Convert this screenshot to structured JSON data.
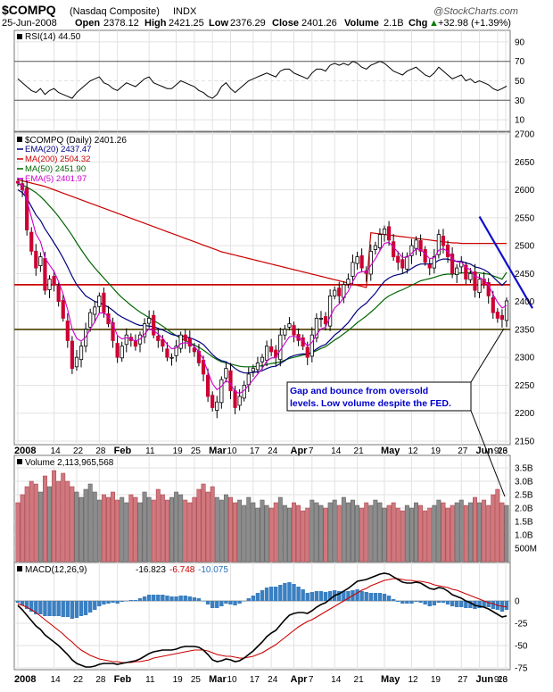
{
  "header": {
    "symbol": "$COMPQ",
    "exchange_name": "(Nasdaq Composite)",
    "index_tag": "INDX",
    "watermark": "@StockCharts.com",
    "date": "25-Jun-2008",
    "open_label": "Open",
    "open": "2378.12",
    "high_label": "High",
    "high": "2421.25",
    "low_label": "Low",
    "low": "2376.29",
    "close_label": "Close",
    "close": "2401.26",
    "volume_label": "Volume",
    "volume": "2.1B",
    "chg_label": "Chg",
    "chg": "+32.98 (+1.39%)",
    "chg_arrow": "▲"
  },
  "rsi_panel": {
    "label": "RSI(14) 44.50",
    "ticks": [
      "90",
      "70",
      "50",
      "30",
      "10"
    ]
  },
  "price_panel": {
    "label": "$COMPQ (Daily) 2401.26",
    "legend": [
      {
        "text": "EMA(20) 2437.47",
        "color": "#000080"
      },
      {
        "text": "MA(200) 2504.32",
        "color": "#cc0000"
      },
      {
        "text": "MA(50) 2451.90",
        "color": "#006600"
      },
      {
        "text": "EMA(5) 2401.97",
        "color": "#cc00cc"
      }
    ],
    "ticks": [
      "2700",
      "2650",
      "2600",
      "2550",
      "2500",
      "2450",
      "2400",
      "2350",
      "2300",
      "2250",
      "2200",
      "2150"
    ],
    "annotation": [
      "Gap and bounce from oversold",
      "levels. Low volume despite the FED."
    ]
  },
  "volume_panel": {
    "label": "Volume 2,113,965,568",
    "ticks": [
      "3.5B",
      "3.0B",
      "2.5B",
      "2.0B",
      "1.5B",
      "1.0B",
      "500M"
    ]
  },
  "macd_panel": {
    "label": "MACD(12,26,9)",
    "v1": "-16.823",
    "v2": "-6.748",
    "v3": "-10.075",
    "ticks": [
      "0",
      "-25",
      "-50",
      "-75"
    ]
  },
  "x_axis": {
    "labels": [
      "2008",
      "14",
      "22",
      "28",
      "Feb",
      "11",
      "19",
      "25",
      "Mar",
      "10",
      "17",
      "24",
      "Apr",
      "7",
      "14",
      "21",
      "May",
      "12",
      "19",
      "27",
      "Jun",
      "9",
      "16",
      "23"
    ]
  },
  "colors": {
    "up_candle": "#000000",
    "down_candle": "#cc0033",
    "volume_up": "#8c8c8c",
    "volume_down": "#d0787d",
    "macd_hist": "#3a7fc1",
    "trendline": "#1010cc",
    "support_line": "#cc0000",
    "support_green": "#006600"
  },
  "chart_data": {
    "type": "candlestick",
    "title": "$COMPQ (Nasdaq Composite)",
    "period": "Daily, Jan 2 2008 - Jun 25 2008",
    "last": {
      "date": "25-Jun-2008",
      "open": 2378.12,
      "high": 2421.25,
      "low": 2376.29,
      "close": 2401.26,
      "volume": "2.1B",
      "change": 32.98,
      "change_pct": 1.39
    },
    "price_ylim": [
      2150,
      2700
    ],
    "horizontal_lines": [
      2430,
      2350
    ],
    "trendline": {
      "from": {
        "date": "2008-06-05",
        "price": 2552
      },
      "to": {
        "date": "2008-06-25",
        "price": 2390
      }
    },
    "closes": [
      2612,
      2600,
      2528,
      2490,
      2460,
      2480,
      2420,
      2440,
      2430,
      2400,
      2370,
      2330,
      2280,
      2300,
      2320,
      2350,
      2380,
      2390,
      2410,
      2380,
      2360,
      2330,
      2300,
      2320,
      2340,
      2330,
      2320,
      2340,
      2360,
      2370,
      2340,
      2330,
      2320,
      2300,
      2300,
      2320,
      2340,
      2330,
      2320,
      2310,
      2290,
      2270,
      2230,
      2210,
      2220,
      2260,
      2280,
      2240,
      2210,
      2230,
      2250,
      2270,
      2280,
      2290,
      2300,
      2320,
      2310,
      2300,
      2340,
      2350,
      2360,
      2340,
      2330,
      2320,
      2300,
      2340,
      2370,
      2370,
      2360,
      2410,
      2420,
      2410,
      2430,
      2440,
      2470,
      2480,
      2460,
      2450,
      2490,
      2500,
      2520,
      2530,
      2510,
      2480,
      2470,
      2460,
      2480,
      2500,
      2510,
      2490,
      2470,
      2460,
      2480,
      2520,
      2500,
      2480,
      2450,
      2460,
      2470,
      2440,
      2450,
      2420,
      2440,
      2430,
      2410,
      2380,
      2370,
      2368,
      2401
    ],
    "ema20": [
      2600,
      2595,
      2585,
      2570,
      2555,
      2545,
      2530,
      2518,
      2505,
      2492,
      2478,
      2462,
      2445,
      2430,
      2420,
      2410,
      2405,
      2400,
      2398,
      2394,
      2390,
      2384,
      2377,
      2372,
      2368,
      2364,
      2360,
      2357,
      2357,
      2356,
      2355,
      2352,
      2349,
      2345,
      2341,
      2339,
      2338,
      2337,
      2335,
      2332,
      2328,
      2323,
      2314,
      2305,
      2298,
      2294,
      2292,
      2287,
      2280,
      2275,
      2272,
      2272,
      2273,
      2274,
      2276,
      2280,
      2283,
      2284,
      2289,
      2294,
      2300,
      2303,
      2305,
      2306,
      2306,
      2309,
      2315,
      2320,
      2323,
      2331,
      2340,
      2346,
      2354,
      2362,
      2373,
      2384,
      2391,
      2397,
      2406,
      2415,
      2426,
      2436,
      2442,
      2446,
      2448,
      2450,
      2454,
      2459,
      2464,
      2467,
      2467,
      2467,
      2468,
      2474,
      2476,
      2476,
      2473,
      2472,
      2472,
      2469,
      2467,
      2462,
      2460,
      2457,
      2452,
      2444,
      2436,
      2429,
      2437
    ],
    "ma50": [
      2610,
      2608,
      2605,
      2600,
      2595,
      2588,
      2580,
      2571,
      2562,
      2552,
      2541,
      2530,
      2518,
      2505,
      2493,
      2481,
      2470,
      2460,
      2451,
      2442,
      2433,
      2424,
      2415,
      2407,
      2400,
      2393,
      2387,
      2381,
      2376,
      2371,
      2366,
      2361,
      2356,
      2350,
      2344,
      2339,
      2334,
      2330,
      2326,
      2322,
      2318,
      2313,
      2307,
      2301,
      2296,
      2292,
      2290,
      2288,
      2286,
      2284,
      2283,
      2283,
      2283,
      2284,
      2285,
      2287,
      2289,
      2290,
      2292,
      2295,
      2298,
      2300,
      2302,
      2304,
      2305,
      2308,
      2312,
      2316,
      2319,
      2325,
      2331,
      2336,
      2342,
      2348,
      2355,
      2362,
      2368,
      2374,
      2381,
      2388,
      2396,
      2404,
      2410,
      2414,
      2418,
      2421,
      2425,
      2429,
      2433,
      2437,
      2439,
      2441,
      2443,
      2446,
      2448,
      2449,
      2449,
      2450,
      2451,
      2451,
      2452,
      2451,
      2451,
      2450,
      2449,
      2446,
      2443,
      2440,
      2452
    ],
    "ma200": [
      2618,
      2616,
      2614,
      2612,
      2610,
      2608,
      2606,
      2603,
      2600,
      2597,
      2594,
      2591,
      2588,
      2585,
      2582,
      2579,
      2576,
      2573,
      2570,
      2567,
      2564,
      2561,
      2558,
      2555,
      2552,
      2549,
      2546,
      2543,
      2540,
      2537,
      2534,
      2531,
      2528,
      2525,
      2522,
      2519,
      2516,
      2513,
      2510,
      2507,
      2504,
      2501,
      2498,
      2495,
      2492,
      2489,
      2487,
      2485,
      2483,
      2481,
      2479,
      2477,
      2475,
      2473,
      2471,
      2469,
      2467,
      2465,
      2463,
      2461,
      2459,
      2457,
      2455,
      2453,
      2451,
      2449,
      2447,
      2445,
      2443,
      2441,
      2439,
      2437,
      2435,
      2433,
      2431,
      2429,
      2427,
      2425,
      2523,
      2522,
      2521,
      2520,
      2519,
      2518,
      2517,
      2516,
      2515,
      2514,
      2513,
      2512,
      2511,
      2510,
      2509,
      2508,
      2507,
      2506,
      2505,
      2505,
      2504,
      2504,
      2504,
      2504,
      2504,
      2504,
      2504,
      2504,
      2504,
      2504,
      2504
    ],
    "rsi": [
      52,
      48,
      44,
      40,
      38,
      42,
      36,
      40,
      42,
      38,
      36,
      34,
      32,
      38,
      42,
      46,
      50,
      52,
      54,
      48,
      46,
      42,
      40,
      44,
      48,
      46,
      44,
      48,
      52,
      54,
      48,
      46,
      44,
      42,
      42,
      46,
      50,
      48,
      46,
      44,
      40,
      38,
      34,
      32,
      36,
      44,
      48,
      42,
      38,
      42,
      46,
      50,
      52,
      54,
      56,
      58,
      56,
      54,
      60,
      62,
      62,
      58,
      56,
      54,
      52,
      58,
      62,
      62,
      60,
      66,
      68,
      66,
      68,
      66,
      70,
      68,
      64,
      62,
      66,
      68,
      70,
      68,
      64,
      60,
      58,
      56,
      60,
      62,
      64,
      60,
      56,
      54,
      58,
      64,
      60,
      56,
      52,
      54,
      56,
      50,
      52,
      48,
      50,
      48,
      46,
      42,
      40,
      42,
      44.5
    ],
    "volume_billions": [
      2.2,
      2.5,
      2.8,
      3.0,
      2.9,
      2.6,
      3.2,
      2.8,
      3.4,
      3.0,
      3.3,
      3.0,
      2.8,
      2.6,
      2.4,
      2.7,
      2.9,
      2.6,
      2.3,
      2.5,
      2.4,
      2.6,
      2.3,
      2.4,
      2.2,
      2.5,
      2.4,
      2.2,
      2.6,
      2.4,
      2.3,
      2.7,
      2.5,
      2.3,
      2.4,
      2.6,
      2.5,
      2.3,
      2.2,
      2.4,
      2.7,
      2.9,
      2.6,
      2.8,
      2.4,
      2.3,
      2.5,
      2.4,
      2.2,
      2.3,
      2.1,
      2.4,
      2.2,
      2.0,
      2.3,
      2.1,
      2.0,
      2.2,
      2.4,
      2.1,
      2.0,
      2.2,
      2.1,
      1.9,
      2.0,
      2.3,
      2.2,
      2.1,
      2.0,
      2.2,
      2.3,
      2.1,
      2.4,
      2.2,
      2.3,
      2.1,
      2.0,
      2.2,
      2.1,
      2.3,
      2.2,
      2.0,
      2.1,
      2.2,
      2.0,
      1.9,
      2.1,
      2.0,
      2.2,
      2.1,
      1.9,
      2.0,
      2.1,
      2.3,
      2.2,
      2.0,
      2.1,
      2.2,
      2.3,
      2.1,
      2.2,
      2.4,
      2.2,
      2.3,
      2.1,
      2.5,
      2.7,
      2.2,
      2.1
    ],
    "macd": [
      -5,
      -10,
      -16,
      -22,
      -28,
      -32,
      -38,
      -42,
      -46,
      -50,
      -55,
      -60,
      -66,
      -70,
      -72,
      -74,
      -74,
      -73,
      -71,
      -70,
      -70,
      -70,
      -71,
      -70,
      -69,
      -68,
      -67,
      -65,
      -62,
      -59,
      -57,
      -56,
      -55,
      -55,
      -55,
      -54,
      -52,
      -51,
      -51,
      -51,
      -52,
      -55,
      -60,
      -66,
      -68,
      -67,
      -65,
      -66,
      -68,
      -67,
      -64,
      -60,
      -56,
      -51,
      -46,
      -40,
      -36,
      -33,
      -27,
      -21,
      -16,
      -14,
      -13,
      -13,
      -14,
      -11,
      -7,
      -4,
      -2,
      2,
      6,
      8,
      11,
      14,
      18,
      22,
      23,
      24,
      26,
      28,
      30,
      31,
      30,
      27,
      24,
      21,
      20,
      20,
      21,
      20,
      17,
      14,
      13,
      15,
      14,
      11,
      7,
      5,
      3,
      0,
      -2,
      -5,
      -6,
      -7,
      -9,
      -12,
      -15,
      -18,
      -16.8
    ],
    "macd_signal": [
      -3,
      -5,
      -7,
      -10,
      -13,
      -17,
      -21,
      -25,
      -29,
      -33,
      -37,
      -42,
      -46,
      -51,
      -55,
      -58,
      -61,
      -63,
      -65,
      -66,
      -67,
      -68,
      -68,
      -69,
      -69,
      -69,
      -68,
      -68,
      -67,
      -66,
      -64,
      -63,
      -62,
      -61,
      -60,
      -59,
      -58,
      -57,
      -56,
      -55,
      -55,
      -55,
      -56,
      -58,
      -60,
      -61,
      -62,
      -62,
      -63,
      -64,
      -64,
      -63,
      -62,
      -60,
      -58,
      -55,
      -52,
      -49,
      -45,
      -41,
      -37,
      -33,
      -29,
      -26,
      -23,
      -21,
      -18,
      -15,
      -12,
      -9,
      -6,
      -3,
      0,
      3,
      6,
      9,
      12,
      14,
      17,
      19,
      21,
      23,
      24,
      25,
      25,
      24,
      23,
      23,
      22,
      22,
      21,
      20,
      18,
      17,
      16,
      15,
      13,
      12,
      10,
      8,
      6,
      4,
      2,
      0,
      -2,
      -3,
      -5,
      -6,
      -6.7
    ],
    "macd_hist": [
      -2,
      -5,
      -9,
      -12,
      -15,
      -15,
      -17,
      -17,
      -17,
      -17,
      -18,
      -18,
      -20,
      -19,
      -17,
      -16,
      -13,
      -10,
      -6,
      -4,
      -3,
      -2,
      -3,
      -1,
      0,
      1,
      1,
      3,
      5,
      7,
      7,
      7,
      7,
      6,
      5,
      5,
      6,
      6,
      5,
      4,
      3,
      0,
      -4,
      -8,
      -8,
      -6,
      -3,
      -4,
      -5,
      -3,
      0,
      3,
      6,
      9,
      12,
      15,
      16,
      16,
      18,
      20,
      21,
      19,
      16,
      13,
      9,
      10,
      11,
      11,
      10,
      11,
      12,
      11,
      11,
      11,
      12,
      13,
      11,
      10,
      9,
      9,
      9,
      8,
      6,
      2,
      -1,
      -3,
      -3,
      -3,
      -1,
      -2,
      -4,
      -6,
      -5,
      -2,
      -2,
      -4,
      -6,
      -7,
      -7,
      -8,
      -8,
      -9,
      -8,
      -7,
      -7,
      -9,
      -10,
      -12,
      -10.1
    ]
  }
}
